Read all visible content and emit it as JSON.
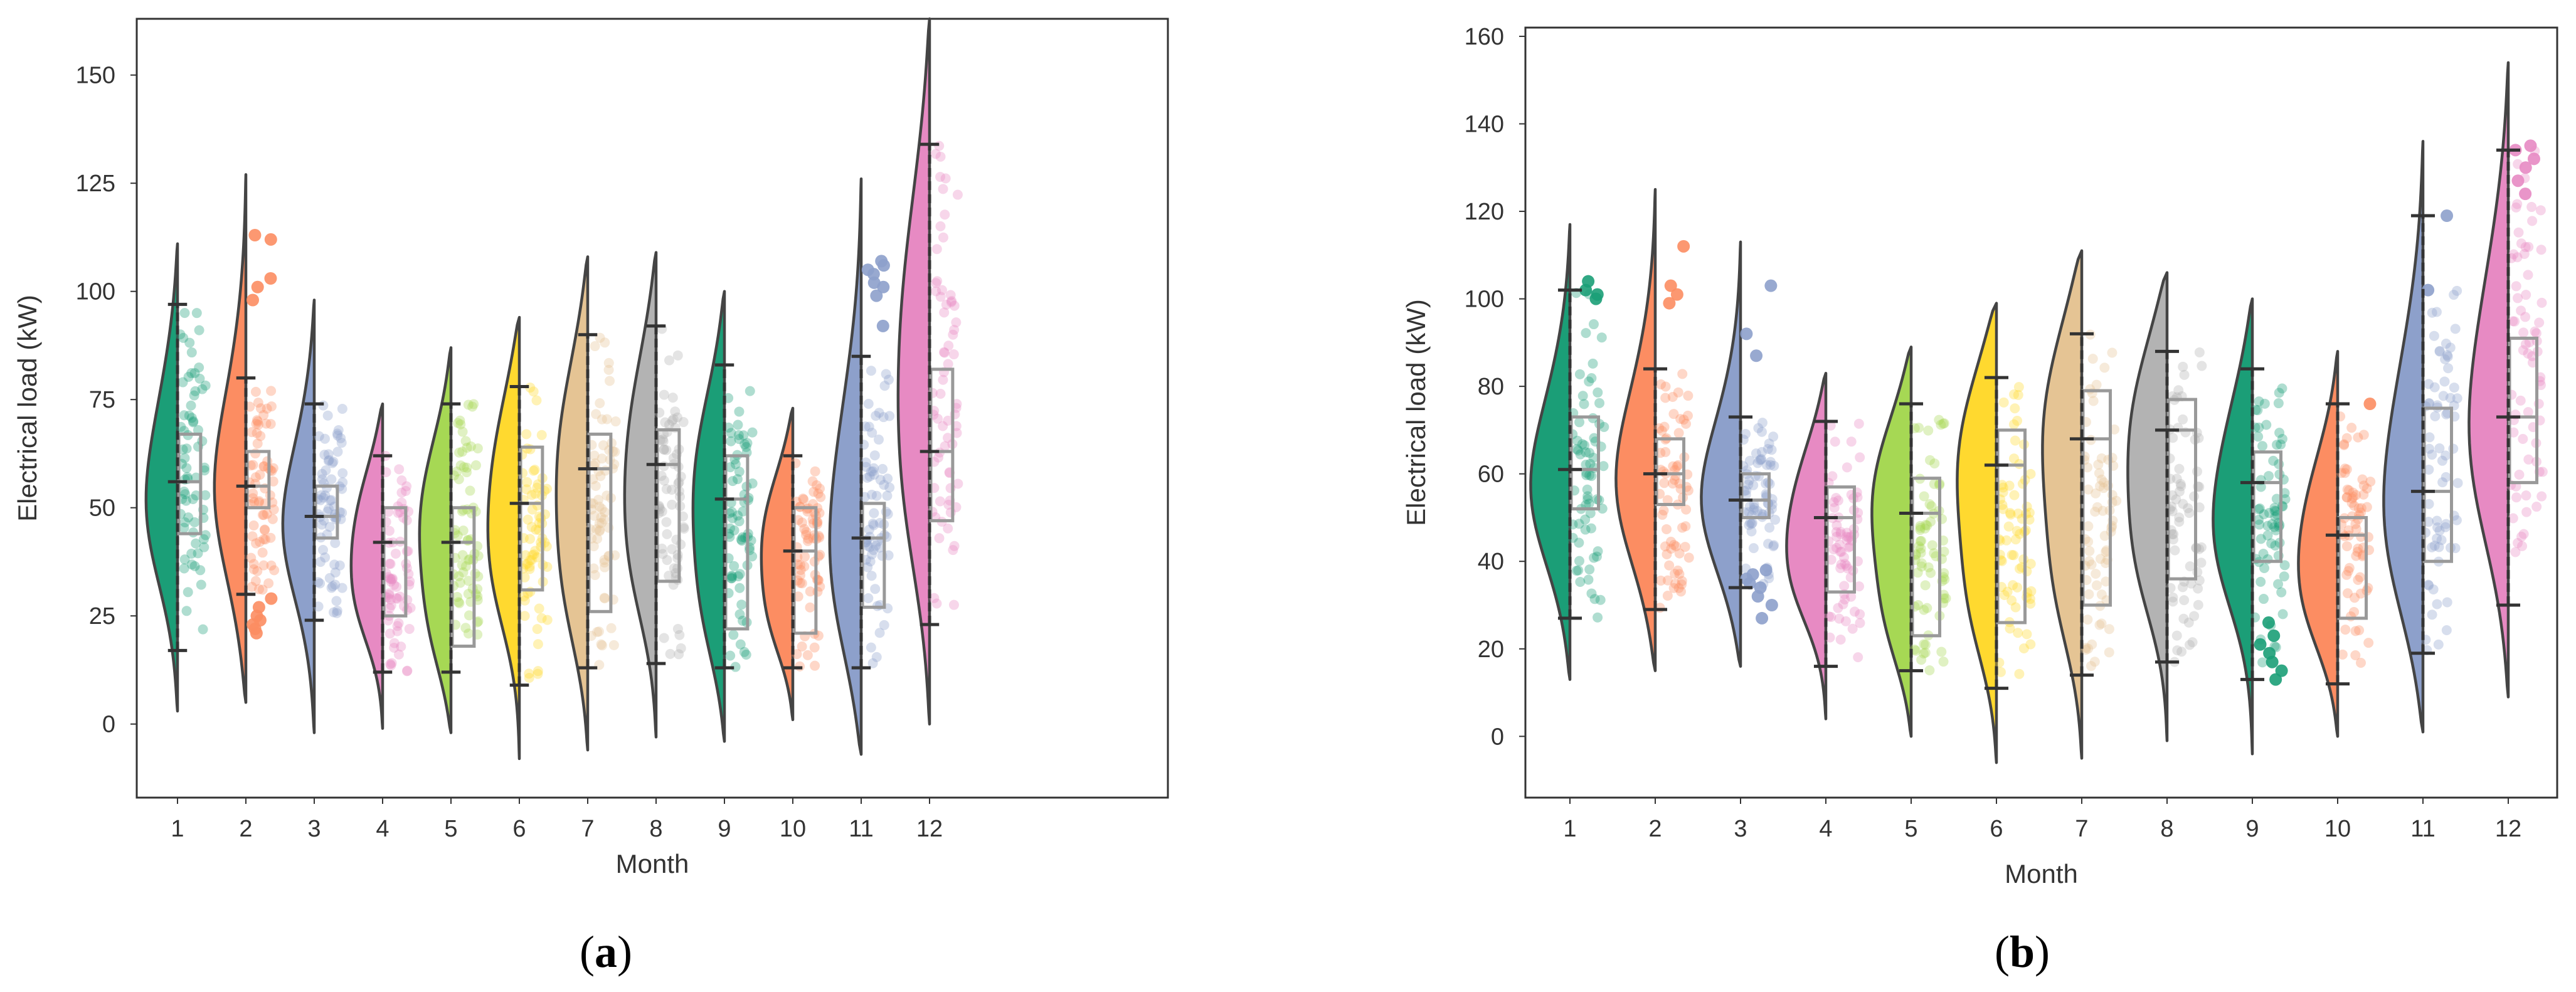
{
  "chart_data": [
    {
      "type": "raincloud",
      "panel_label": "(a)",
      "panel_letter": "a",
      "xlabel": "Month",
      "ylabel": "Electrical load (kW)",
      "ylim": [
        -17,
        163
      ],
      "yticks": [
        0,
        25,
        50,
        75,
        100,
        125,
        150
      ],
      "categories": [
        "1",
        "2",
        "3",
        "4",
        "5",
        "6",
        "7",
        "8",
        "9",
        "10",
        "11",
        "12"
      ],
      "colors": [
        "#1b9e77",
        "#fc8d62",
        "#8da0cb",
        "#e78ac3",
        "#a6d854",
        "#ffd92f",
        "#e5c494",
        "#b3b3b3",
        "#1b9e77",
        "#fc8d62",
        "#8da0cb",
        "#e78ac3"
      ],
      "series": [
        {
          "month": "1",
          "violin_min": 3,
          "violin_max": 111,
          "whisker_low": 17,
          "whisker_high": 97,
          "q1": 44,
          "median": 56,
          "q3": 67,
          "mode": 58,
          "outliers": []
        },
        {
          "month": "2",
          "violin_min": 5,
          "violin_max": 127,
          "whisker_low": 30,
          "whisker_high": 80,
          "q1": 50,
          "median": 55,
          "q3": 63,
          "mode": 55,
          "outliers": [
            21,
            22,
            23,
            24,
            25,
            27,
            29,
            98,
            101,
            103,
            112,
            113
          ]
        },
        {
          "month": "3",
          "violin_min": -2,
          "violin_max": 98,
          "whisker_low": 24,
          "whisker_high": 74,
          "q1": 43,
          "median": 48,
          "q3": 55,
          "mode": 49,
          "outliers": []
        },
        {
          "month": "4",
          "violin_min": -1,
          "violin_max": 74,
          "whisker_low": 12,
          "whisker_high": 62,
          "q1": 25,
          "median": 42,
          "q3": 50,
          "mode": 45,
          "outliers": []
        },
        {
          "month": "5",
          "violin_min": -2,
          "violin_max": 87,
          "whisker_low": 12,
          "whisker_high": 74,
          "q1": 18,
          "median": 42,
          "q3": 50,
          "mode": 48,
          "outliers": []
        },
        {
          "month": "6",
          "violin_min": -8,
          "violin_max": 94,
          "whisker_low": 9,
          "whisker_high": 78,
          "q1": 31,
          "median": 51,
          "q3": 64,
          "mode": 58,
          "outliers": []
        },
        {
          "month": "7",
          "violin_min": -6,
          "violin_max": 108,
          "whisker_low": 13,
          "whisker_high": 90,
          "q1": 26,
          "median": 59,
          "q3": 67,
          "mode": 62,
          "outliers": []
        },
        {
          "month": "8",
          "violin_min": -3,
          "violin_max": 109,
          "whisker_low": 14,
          "whisker_high": 92,
          "q1": 33,
          "median": 60,
          "q3": 68,
          "mode": 64,
          "outliers": []
        },
        {
          "month": "9",
          "violin_min": -4,
          "violin_max": 100,
          "whisker_low": 13,
          "whisker_high": 83,
          "q1": 22,
          "median": 52,
          "q3": 62,
          "mode": 56,
          "outliers": []
        },
        {
          "month": "10",
          "violin_min": 1,
          "violin_max": 73,
          "whisker_low": 13,
          "whisker_high": 62,
          "q1": 21,
          "median": 40,
          "q3": 50,
          "mode": 44,
          "outliers": []
        },
        {
          "month": "11",
          "violin_min": -7,
          "violin_max": 126,
          "whisker_low": 13,
          "whisker_high": 85,
          "q1": 27,
          "median": 43,
          "q3": 51,
          "mode": 48,
          "outliers": [
            92,
            99,
            101,
            102,
            104,
            105,
            106,
            107
          ]
        },
        {
          "month": "12",
          "violin_min": 0,
          "violin_max": 163,
          "whisker_low": 23,
          "whisker_high": 134,
          "q1": 47,
          "median": 63,
          "q3": 82,
          "mode": 90,
          "outliers": []
        }
      ]
    },
    {
      "type": "raincloud",
      "panel_label": "(b)",
      "panel_letter": "b",
      "xlabel": "Month",
      "ylabel": "Electrical load (kW)",
      "ylim": [
        -14,
        162
      ],
      "yticks": [
        0,
        20,
        40,
        60,
        80,
        100,
        120,
        140,
        160
      ],
      "categories": [
        "1",
        "2",
        "3",
        "4",
        "5",
        "6",
        "7",
        "8",
        "9",
        "10",
        "11",
        "12"
      ],
      "colors": [
        "#1b9e77",
        "#fc8d62",
        "#8da0cb",
        "#e78ac3",
        "#a6d854",
        "#ffd92f",
        "#e5c494",
        "#b3b3b3",
        "#1b9e77",
        "#fc8d62",
        "#8da0cb",
        "#e78ac3"
      ],
      "series": [
        {
          "month": "1",
          "violin_min": 13,
          "violin_max": 117,
          "whisker_low": 27,
          "whisker_high": 102,
          "q1": 52,
          "median": 61,
          "q3": 73,
          "mode": 60,
          "outliers": [
            100,
            101,
            102,
            104
          ]
        },
        {
          "month": "2",
          "violin_min": 15,
          "violin_max": 125,
          "whisker_low": 29,
          "whisker_high": 84,
          "q1": 53,
          "median": 60,
          "q3": 68,
          "mode": 60,
          "outliers": [
            99,
            101,
            103,
            112
          ]
        },
        {
          "month": "3",
          "violin_min": 16,
          "violin_max": 113,
          "whisker_low": 34,
          "whisker_high": 73,
          "q1": 50,
          "median": 54,
          "q3": 60,
          "mode": 55,
          "outliers": [
            27,
            30,
            32,
            34,
            35,
            36,
            37,
            38,
            87,
            92,
            103
          ]
        },
        {
          "month": "4",
          "violin_min": 4,
          "violin_max": 83,
          "whisker_low": 16,
          "whisker_high": 72,
          "q1": 33,
          "median": 50,
          "q3": 57,
          "mode": 52,
          "outliers": []
        },
        {
          "month": "5",
          "violin_min": 0,
          "violin_max": 89,
          "whisker_low": 15,
          "whisker_high": 76,
          "q1": 23,
          "median": 51,
          "q3": 59,
          "mode": 56,
          "outliers": []
        },
        {
          "month": "6",
          "violin_min": -6,
          "violin_max": 99,
          "whisker_low": 11,
          "whisker_high": 82,
          "q1": 26,
          "median": 62,
          "q3": 70,
          "mode": 66,
          "outliers": []
        },
        {
          "month": "7",
          "violin_min": -5,
          "violin_max": 111,
          "whisker_low": 14,
          "whisker_high": 92,
          "q1": 30,
          "median": 68,
          "q3": 79,
          "mode": 74,
          "outliers": []
        },
        {
          "month": "8",
          "violin_min": -1,
          "violin_max": 106,
          "whisker_low": 17,
          "whisker_high": 88,
          "q1": 36,
          "median": 70,
          "q3": 77,
          "mode": 72,
          "outliers": []
        },
        {
          "month": "9",
          "violin_min": -4,
          "violin_max": 100,
          "whisker_low": 13,
          "whisker_high": 84,
          "q1": 40,
          "median": 58,
          "q3": 65,
          "mode": 60,
          "outliers": [
            13,
            15,
            17,
            19,
            21,
            23,
            26
          ]
        },
        {
          "month": "10",
          "violin_min": 0,
          "violin_max": 88,
          "whisker_low": 12,
          "whisker_high": 76,
          "q1": 27,
          "median": 46,
          "q3": 50,
          "mode": 47,
          "outliers": [
            76
          ]
        },
        {
          "month": "11",
          "violin_min": 1,
          "violin_max": 136,
          "whisker_low": 19,
          "whisker_high": 119,
          "q1": 40,
          "median": 56,
          "q3": 75,
          "mode": 60,
          "outliers": [
            102,
            119
          ]
        },
        {
          "month": "12",
          "violin_min": 9,
          "violin_max": 154,
          "whisker_low": 30,
          "whisker_high": 134,
          "q1": 58,
          "median": 73,
          "q3": 91,
          "mode": 80,
          "outliers": [
            124,
            127,
            130,
            132,
            134,
            135
          ]
        }
      ]
    }
  ]
}
